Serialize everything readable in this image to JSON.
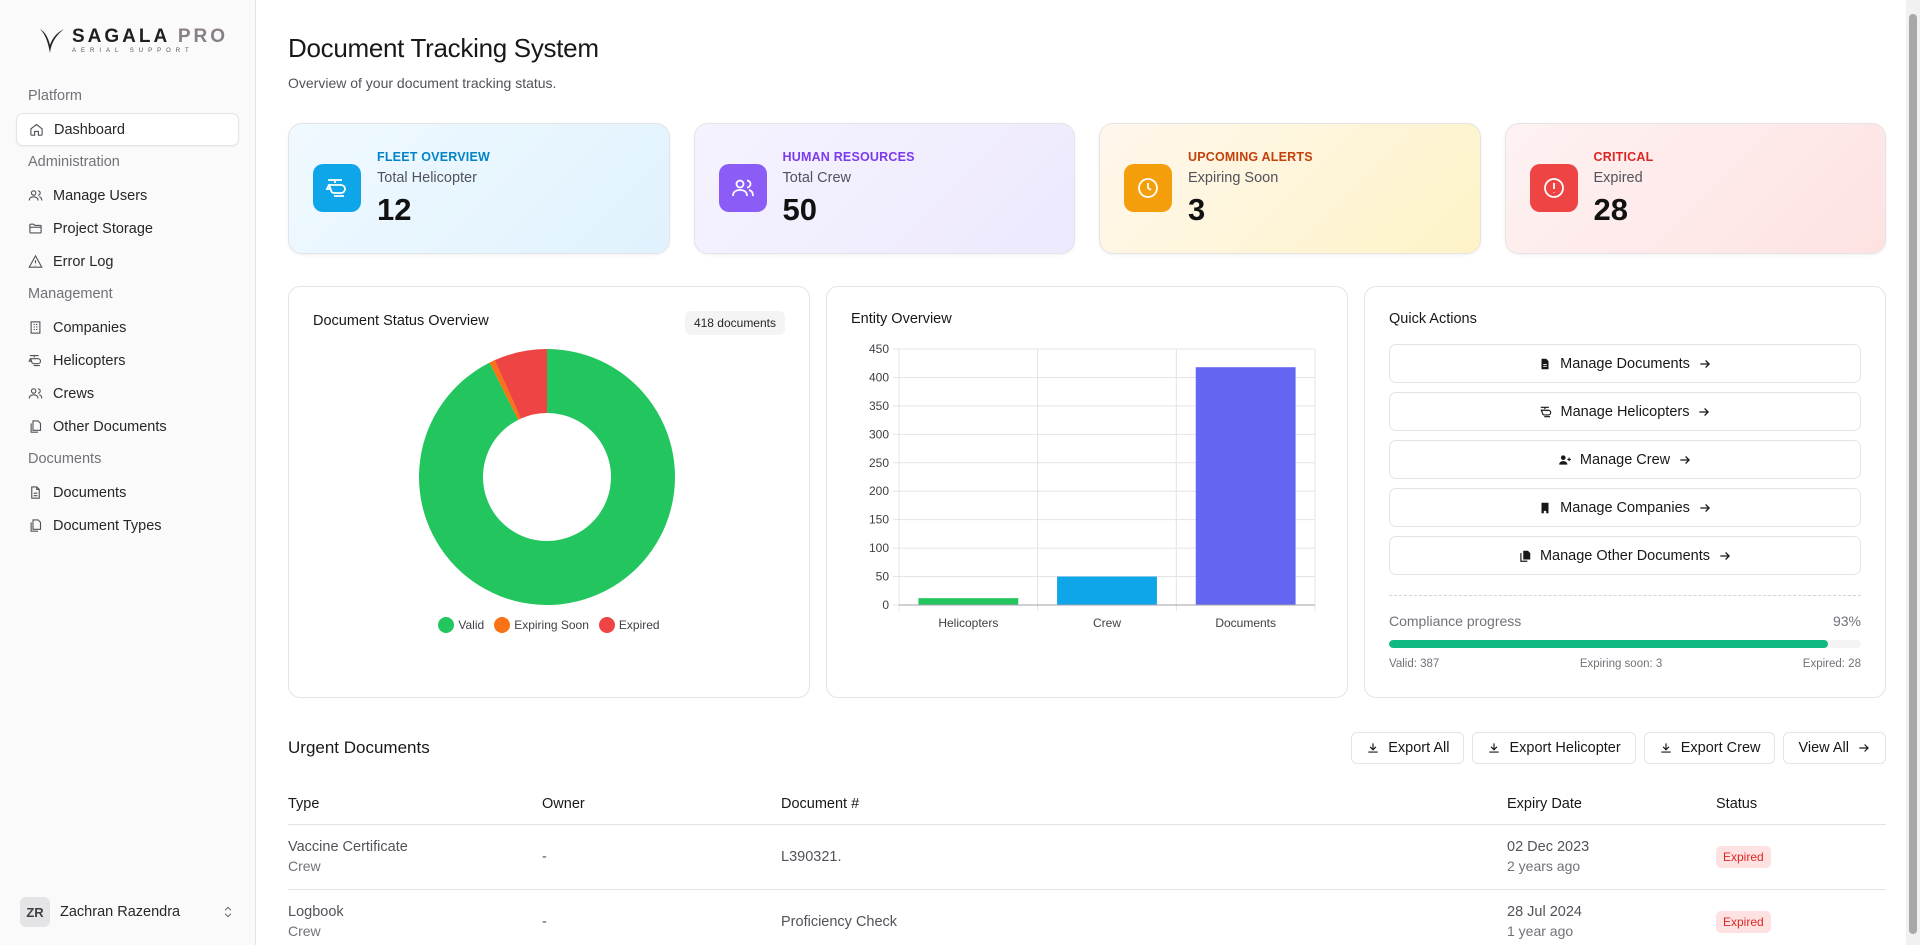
{
  "brand": {
    "name_main": "SAGALA",
    "name_accent": "PRO",
    "tagline": "AERIAL SUPPORT"
  },
  "sidebar": {
    "groups": [
      {
        "label": "Platform",
        "items": [
          {
            "label": "Dashboard",
            "icon": "home-icon",
            "active": true
          }
        ]
      },
      {
        "label": "Administration",
        "items": [
          {
            "label": "Manage Users",
            "icon": "users-icon"
          },
          {
            "label": "Project Storage",
            "icon": "folder-icon"
          },
          {
            "label": "Error Log",
            "icon": "warning-icon"
          }
        ]
      },
      {
        "label": "Management",
        "items": [
          {
            "label": "Companies",
            "icon": "building-icon"
          },
          {
            "label": "Helicopters",
            "icon": "helicopter-icon"
          },
          {
            "label": "Crews",
            "icon": "users-icon"
          },
          {
            "label": "Other Documents",
            "icon": "files-icon"
          }
        ]
      },
      {
        "label": "Documents",
        "items": [
          {
            "label": "Documents",
            "icon": "file-icon"
          },
          {
            "label": "Document Types",
            "icon": "files-icon"
          }
        ]
      }
    ],
    "user": {
      "initials": "ZR",
      "name": "Zachran Razendra"
    }
  },
  "page": {
    "title": "Document Tracking System",
    "subtitle": "Overview of your document tracking status."
  },
  "stats": [
    {
      "eyebrow": "FLEET OVERVIEW",
      "label": "Total Helicopter",
      "value": "12",
      "color": "#0284c7",
      "icon_bg": "#0ea5e9",
      "icon": "helicopter-icon"
    },
    {
      "eyebrow": "HUMAN RESOURCES",
      "label": "Total Crew",
      "value": "50",
      "color": "#7c3aed",
      "icon_bg": "#8b5cf6",
      "icon": "users-icon"
    },
    {
      "eyebrow": "UPCOMING ALERTS",
      "label": "Expiring Soon",
      "value": "3",
      "color": "#c2410c",
      "icon_bg": "#f59e0b",
      "icon": "clock-icon"
    },
    {
      "eyebrow": "CRITICAL",
      "label": "Expired",
      "value": "28",
      "color": "#dc2626",
      "icon_bg": "#ef4444",
      "icon": "alert-circle-icon"
    }
  ],
  "doc_status": {
    "title": "Document Status Overview",
    "badge": "418 documents",
    "legend": [
      {
        "label": "Valid",
        "color": "#22c55e"
      },
      {
        "label": "Expiring Soon",
        "color": "#f97316"
      },
      {
        "label": "Expired",
        "color": "#ef4444"
      }
    ]
  },
  "entity": {
    "title": "Entity Overview"
  },
  "chart_data": [
    {
      "type": "pie",
      "title": "Document Status Overview",
      "donut": true,
      "categories": [
        "Valid",
        "Expiring Soon",
        "Expired"
      ],
      "values": [
        387,
        3,
        28
      ],
      "colors": [
        "#22c55e",
        "#f97316",
        "#ef4444"
      ],
      "legend": "bottom"
    },
    {
      "type": "bar",
      "title": "Entity Overview",
      "categories": [
        "Helicopters",
        "Crew",
        "Documents"
      ],
      "values": [
        12,
        50,
        418
      ],
      "colors": [
        "#22c55e",
        "#0ea5e9",
        "#6366f1"
      ],
      "ylim": [
        0,
        450
      ],
      "yticks": [
        0,
        50,
        100,
        150,
        200,
        250,
        300,
        350,
        400,
        450
      ],
      "grid": true
    }
  ],
  "quick_actions": {
    "title": "Quick Actions",
    "items": [
      {
        "label": "Manage Documents",
        "icon": "document-icon"
      },
      {
        "label": "Manage Helicopters",
        "icon": "helicopter-icon"
      },
      {
        "label": "Manage Crew",
        "icon": "user-plus-icon"
      },
      {
        "label": "Manage Companies",
        "icon": "building-icon"
      },
      {
        "label": "Manage Other Documents",
        "icon": "files-icon"
      }
    ],
    "compliance": {
      "label": "Compliance progress",
      "percent_text": "93%",
      "progress": 0.93,
      "valid": "Valid: 387",
      "expiring": "Expiring soon: 3",
      "expired": "Expired: 28"
    }
  },
  "urgent": {
    "title": "Urgent Documents",
    "buttons": {
      "export_all": "Export All",
      "export_helicopter": "Export Helicopter",
      "export_crew": "Export Crew",
      "view_all": "View All"
    },
    "columns": [
      "Type",
      "Owner",
      "Document #",
      "Expiry Date",
      "Status"
    ],
    "rows": [
      {
        "type": "Vaccine Certificate",
        "subtype": "Crew",
        "owner": "-",
        "doc_no": "L390321.",
        "expiry": "02 Dec 2023",
        "ago": "2 years ago",
        "status": "Expired"
      },
      {
        "type": "Logbook",
        "subtype": "Crew",
        "owner": "-",
        "doc_no": "Proficiency Check",
        "expiry": "28 Jul 2024",
        "ago": "1 year ago",
        "status": "Expired"
      }
    ]
  }
}
